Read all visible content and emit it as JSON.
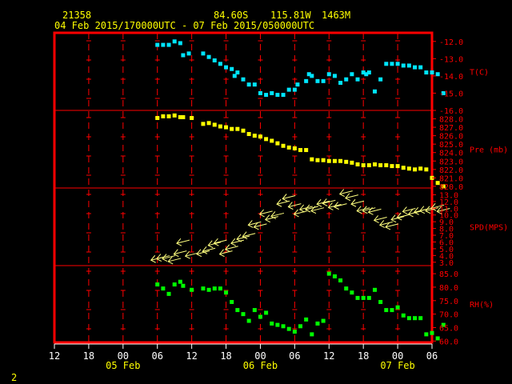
{
  "header": {
    "station": "21358",
    "lat": "84.60S",
    "lon": "115.81W",
    "elev": "1463M",
    "period": "04 Feb 2015/170000UTC - 07 Feb 2015/050000UTC"
  },
  "footer": {
    "page": "2"
  },
  "colors": {
    "frame": "#ff0000",
    "axis": "#ffffff",
    "header": "#ffff00",
    "t": "#00e5ff",
    "pre": "#ffff00",
    "spd": "#ffff7f",
    "rh": "#00ff00"
  },
  "chart_data": {
    "type": "scatter",
    "x_ticks": [
      "12",
      "18",
      "00",
      "06",
      "12",
      "18",
      "00",
      "06",
      "12",
      "18",
      "00",
      "06"
    ],
    "date_labels": [
      "05 Feb",
      "06 Feb",
      "07 Feb"
    ],
    "panels": [
      {
        "name": "T(C)",
        "key": "t",
        "ylim": [
          -16.0,
          -11.5
        ],
        "ticks": [
          "-12.0",
          "-13.0",
          "-14.0",
          "-15.0",
          "-16.0"
        ],
        "x": [
          18,
          19,
          20,
          21,
          22,
          22.5,
          23.5,
          26,
          27,
          28,
          29,
          30,
          31,
          31.5,
          32,
          33,
          34,
          35,
          36,
          37,
          38,
          39,
          40,
          41,
          42,
          42.5,
          44,
          44.5,
          45,
          46,
          47,
          48,
          49,
          50,
          51,
          52,
          53,
          54,
          54.5,
          55,
          56,
          57,
          58,
          59,
          60,
          61,
          62,
          63,
          64,
          65,
          66,
          67,
          68
        ],
        "y": [
          -12.2,
          -12.2,
          -12.2,
          -12.0,
          -12.1,
          -12.8,
          -12.7,
          -12.7,
          -12.9,
          -13.1,
          -13.3,
          -13.5,
          -13.6,
          -14.0,
          -13.8,
          -14.2,
          -14.5,
          -14.5,
          -15.0,
          -15.1,
          -15.0,
          -15.1,
          -15.1,
          -14.8,
          -14.8,
          -14.5,
          -14.3,
          -13.9,
          -14.0,
          -14.3,
          -14.3,
          -13.9,
          -14.0,
          -14.4,
          -14.2,
          -13.9,
          -14.2,
          -13.8,
          -13.9,
          -13.8,
          -14.9,
          -14.2,
          -13.3,
          -13.3,
          -13.3,
          -13.4,
          -13.4,
          -13.5,
          -13.5,
          -13.8,
          -13.8,
          -13.9,
          -15.0
        ]
      },
      {
        "name": "Pre (mb)",
        "key": "pre",
        "ylim": [
          819.8,
          829.0
        ],
        "ticks": [
          "828.0",
          "827.0",
          "826.0",
          "825.0",
          "824.0",
          "823.0",
          "822.0",
          "821.0",
          "820.0"
        ],
        "x": [
          18,
          19,
          20,
          21,
          22,
          22.5,
          24,
          26,
          27,
          28,
          29,
          30,
          31,
          32,
          33,
          34,
          35,
          36,
          37,
          38,
          39,
          40,
          41,
          42,
          43,
          44,
          45,
          46,
          47,
          48,
          49,
          50,
          51,
          52,
          53,
          54,
          55,
          56,
          57,
          58,
          59,
          60,
          61,
          62,
          63,
          64,
          65,
          66,
          67,
          68
        ],
        "y": [
          828.1,
          828.3,
          828.3,
          828.4,
          828.2,
          828.2,
          828.1,
          827.4,
          827.5,
          827.3,
          827.1,
          827.0,
          826.8,
          826.8,
          826.6,
          826.2,
          826.0,
          825.9,
          825.6,
          825.4,
          825.1,
          824.8,
          824.6,
          824.5,
          824.3,
          824.3,
          823.2,
          823.1,
          823.1,
          823.0,
          823.0,
          823.0,
          822.9,
          822.8,
          822.6,
          822.5,
          822.5,
          822.6,
          822.5,
          822.5,
          822.4,
          822.4,
          822.2,
          822.1,
          822.0,
          822.1,
          822.0,
          821.0,
          820.4,
          820.0
        ]
      },
      {
        "name": "SPD(MPS)",
        "key": "spd",
        "ylim": [
          2.5,
          14.0
        ],
        "ticks": [
          "13.0",
          "12.0",
          "11.0",
          "10.0",
          "9.0",
          "8.0",
          "7.0",
          "6.0",
          "5.0",
          "4.0",
          "3.0"
        ],
        "x": [
          18,
          19,
          20,
          21,
          22,
          22.5,
          24,
          26,
          27,
          28,
          29,
          30,
          31,
          32,
          33,
          34,
          35,
          36,
          37,
          38,
          39,
          40,
          41,
          42,
          43,
          44,
          45,
          46,
          47,
          48,
          49,
          50,
          51,
          52,
          53,
          54,
          55,
          56,
          57,
          58,
          59,
          60,
          61,
          62,
          63,
          64,
          65,
          66,
          67,
          68
        ],
        "y": [
          3.3,
          3.5,
          3.5,
          3.1,
          4.2,
          5.8,
          3.9,
          4.2,
          4.6,
          5.5,
          5.8,
          4.2,
          4.9,
          5.8,
          6.4,
          6.8,
          8.5,
          8.2,
          10.1,
          9.3,
          9.8,
          11.6,
          12.4,
          11.2,
          10.1,
          10.8,
          10.8,
          10.6,
          11.6,
          11.7,
          11.1,
          11.2,
          13.1,
          12.5,
          11.6,
          10.6,
          10.6,
          10.4,
          9.2,
          8.5,
          8.2,
          9.3,
          9.6,
          10.5,
          10.1,
          10.4,
          10.6,
          10.6,
          11.0,
          10.5
        ]
      },
      {
        "name": "RH(%)",
        "key": "rh",
        "ylim": [
          59.5,
          88.0
        ],
        "ticks": [
          "85.0",
          "80.0",
          "75.0",
          "70.0",
          "65.0",
          "60.0"
        ],
        "x": [
          18,
          19,
          20,
          21,
          22,
          22.5,
          24,
          26,
          27,
          28,
          29,
          30,
          31,
          32,
          33,
          34,
          35,
          36,
          37,
          38,
          39,
          40,
          41,
          42,
          43,
          44,
          45,
          46,
          47,
          48,
          49,
          50,
          51,
          52,
          53,
          54,
          55,
          56,
          57,
          58,
          59,
          60,
          61,
          62,
          63,
          64,
          65,
          66,
          67,
          68
        ],
        "y": [
          81.0,
          79.5,
          77.5,
          81.0,
          82.0,
          80.5,
          79.0,
          79.5,
          79.0,
          79.5,
          79.5,
          78.0,
          74.5,
          71.5,
          70.0,
          67.5,
          71.5,
          69.0,
          70.5,
          66.5,
          66.0,
          65.5,
          64.5,
          63.5,
          65.5,
          68.0,
          62.5,
          66.5,
          67.5,
          85.0,
          84.0,
          82.5,
          79.5,
          78.0,
          76.0,
          76.0,
          76.0,
          79.0,
          74.5,
          71.5,
          71.5,
          72.5,
          69.5,
          68.5,
          68.5,
          68.5,
          62.5,
          63.0,
          61.0,
          66.0
        ]
      }
    ]
  }
}
